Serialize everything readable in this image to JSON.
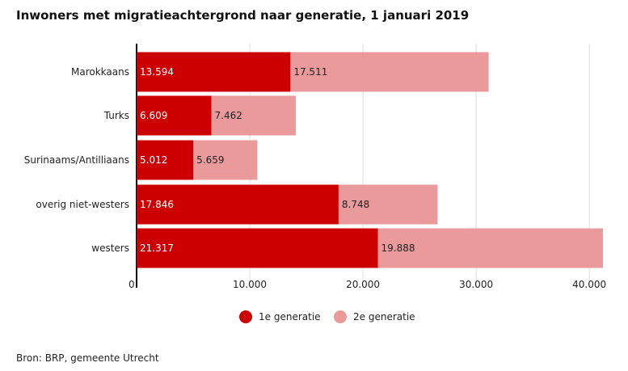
{
  "chart_data": {
    "type": "bar",
    "orientation": "horizontal",
    "stacked": true,
    "title": "Inwoners met migratieachtergrond naar generatie, 1 januari 2019",
    "categories": [
      "Marokkaans",
      "Turks",
      "Surinaams/Antilliaans",
      "overig niet-westers",
      "westers"
    ],
    "series": [
      {
        "name": "1e generatie",
        "color": "#cc0000",
        "values": [
          13594,
          6609,
          5012,
          17846,
          21317
        ],
        "labels": [
          "13.594",
          "6.609",
          "5.012",
          "17.846",
          "21.317"
        ]
      },
      {
        "name": "2e generatie",
        "color": "#ea9a9a",
        "values": [
          17511,
          7462,
          5659,
          8748,
          19888
        ],
        "labels": [
          "17.511",
          "7.462",
          "5.659",
          "8.748",
          "19.888"
        ]
      }
    ],
    "xlim": [
      0,
      41205
    ],
    "x_ticks": [
      0,
      10000,
      20000,
      30000,
      40000
    ],
    "x_tick_labels": [
      "0",
      "10.000",
      "20.000",
      "30.000",
      "40.000"
    ],
    "grid": true,
    "legend": "bottom"
  },
  "source": "Bron: BRP, gemeente Utrecht"
}
